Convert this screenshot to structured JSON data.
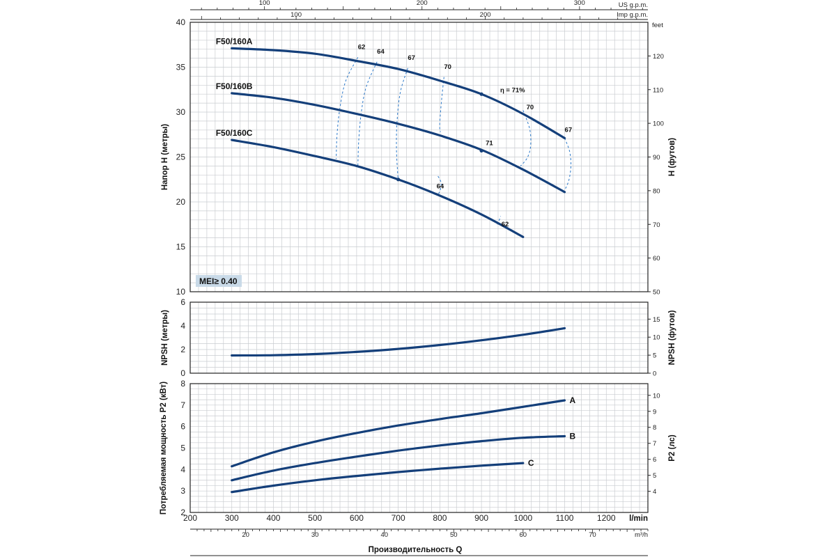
{
  "chart_data": [
    {
      "panel": "head",
      "type": "line",
      "ylabel": "Напор H (метры)",
      "ylabel_right": "H (футов)",
      "ylim": [
        10,
        40
      ],
      "yticks": [
        10,
        15,
        20,
        25,
        30,
        35,
        40
      ],
      "right_unit": "feet",
      "right_ylim": [
        50,
        130
      ],
      "right_ticks": [
        50,
        60,
        70,
        80,
        90,
        100,
        110,
        120
      ],
      "xlim": [
        200,
        1300
      ],
      "top_axis_us": {
        "label": "US g.p.m.",
        "ticks": [
          100,
          200,
          300
        ]
      },
      "top_axis_imp": {
        "label": "Imp g.p.m.",
        "ticks": [
          100,
          200
        ]
      },
      "badge": "MEI≥ 0.40",
      "series": [
        {
          "name": "F50/160A",
          "x": [
            300,
            400,
            500,
            600,
            700,
            800,
            900,
            1000,
            1100
          ],
          "y": [
            37.1,
            36.9,
            36.5,
            35.7,
            34.8,
            33.5,
            32.0,
            29.8,
            27.1
          ]
        },
        {
          "name": "F50/160B",
          "x": [
            300,
            400,
            500,
            600,
            700,
            800,
            900,
            1000,
            1100
          ],
          "y": [
            32.1,
            31.6,
            30.8,
            29.8,
            28.7,
            27.4,
            25.8,
            23.6,
            21.1
          ]
        },
        {
          "name": "F50/160C",
          "x": [
            300,
            400,
            500,
            600,
            700,
            800,
            900,
            1000
          ],
          "y": [
            26.9,
            26.1,
            25.1,
            24.0,
            22.5,
            20.7,
            18.6,
            16.1
          ]
        }
      ],
      "efficiency_labels": [
        {
          "text": "62",
          "x": 603,
          "y": 37.0
        },
        {
          "text": "64",
          "x": 649,
          "y": 36.5
        },
        {
          "text": "67",
          "x": 723,
          "y": 35.8
        },
        {
          "text": "70",
          "x": 810,
          "y": 34.8
        },
        {
          "text": "η = 71%",
          "x": 945,
          "y": 32.2
        },
        {
          "text": "70",
          "x": 1008,
          "y": 30.3
        },
        {
          "text": "67",
          "x": 1100,
          "y": 27.8
        },
        {
          "text": "71",
          "x": 910,
          "y": 26.3
        },
        {
          "text": "64",
          "x": 792,
          "y": 21.5
        },
        {
          "text": "62",
          "x": 948,
          "y": 17.3
        }
      ],
      "efficiency_loops": [
        {
          "x": [
            603,
            574,
            560,
            553,
            551
          ],
          "y": [
            36.1,
            33.5,
            30.5,
            27.5,
            24.8
          ]
        },
        {
          "x": [
            649,
            623,
            611,
            605,
            603
          ],
          "y": [
            35.6,
            32.8,
            29.9,
            26.8,
            24.0
          ]
        },
        {
          "x": [
            723,
            705,
            697,
            696,
            700
          ],
          "y": [
            34.9,
            32.2,
            28.8,
            25.5,
            22.4
          ]
        },
        {
          "x": [
            810,
            804,
            800,
            800,
            802
          ],
          "y": [
            33.9,
            31.3,
            29.0,
            28.0,
            27.8
          ]
        },
        {
          "x": [
            1000,
            1016,
            1018,
            1010,
            994
          ],
          "y": [
            30.2,
            28.1,
            26.2,
            24.9,
            24.0
          ]
        },
        {
          "x": [
            1100,
            1112,
            1115,
            1110,
            1100
          ],
          "y": [
            27.1,
            25.6,
            24.0,
            22.4,
            21.3
          ]
        },
        {
          "x": [
            797,
            802,
            803,
            800,
            795
          ],
          "y": [
            20.9,
            21.5,
            22.1,
            22.5,
            22.9
          ]
        },
        {
          "x": [
            938,
            942,
            946
          ],
          "y": [
            17.5,
            17.9,
            18.4
          ]
        }
      ],
      "efficiency_markers": [
        {
          "x": 900,
          "y": 32.0
        },
        {
          "x": 900,
          "y": 25.7
        },
        {
          "x": 700,
          "y": 22.5
        }
      ]
    },
    {
      "panel": "npsh",
      "type": "line",
      "ylabel": "NPSH (метры)",
      "ylabel_right": "NPSH (футов)",
      "ylim": [
        0,
        6
      ],
      "yticks": [
        0,
        2,
        4,
        6
      ],
      "right_ylim": [
        0,
        19.7
      ],
      "right_ticks": [
        0,
        5,
        10,
        15
      ],
      "xlim": [
        200,
        1300
      ],
      "series": [
        {
          "name": "",
          "x": [
            300,
            400,
            500,
            600,
            700,
            800,
            900,
            1000,
            1100
          ],
          "y": [
            1.5,
            1.52,
            1.62,
            1.8,
            2.05,
            2.38,
            2.78,
            3.25,
            3.8
          ]
        }
      ]
    },
    {
      "panel": "power",
      "type": "line",
      "ylabel": "Потребляемая мощность P2 (кВт)",
      "ylabel_right": "P2 (лс)",
      "ylim": [
        2,
        8
      ],
      "yticks": [
        2,
        3,
        4,
        5,
        6,
        7,
        8
      ],
      "right_ylim": [
        2.68,
        10.73
      ],
      "right_ticks": [
        4,
        5,
        6,
        7,
        8,
        9,
        10
      ],
      "xlim": [
        200,
        1300
      ],
      "series": [
        {
          "name": "A",
          "x": [
            300,
            400,
            500,
            600,
            700,
            800,
            900,
            1000,
            1100
          ],
          "y": [
            4.15,
            4.8,
            5.3,
            5.7,
            6.05,
            6.35,
            6.62,
            6.92,
            7.22
          ]
        },
        {
          "name": "B",
          "x": [
            300,
            400,
            500,
            600,
            700,
            800,
            900,
            1000,
            1100
          ],
          "y": [
            3.5,
            3.95,
            4.3,
            4.6,
            4.88,
            5.12,
            5.32,
            5.48,
            5.55
          ]
        },
        {
          "name": "C",
          "x": [
            300,
            400,
            500,
            600,
            700,
            800,
            900,
            1000
          ],
          "y": [
            2.95,
            3.25,
            3.5,
            3.7,
            3.88,
            4.04,
            4.18,
            4.3
          ]
        }
      ]
    }
  ],
  "x_axis": {
    "title": "Производительность Q",
    "unit_main": "l/min",
    "ticks_main": [
      200,
      300,
      400,
      500,
      600,
      700,
      800,
      900,
      1000,
      1100,
      1200
    ],
    "unit_secondary": "m³/h",
    "ticks_secondary": [
      20,
      30,
      40,
      50,
      60,
      70
    ]
  },
  "colors": {
    "curve": "#143f7a",
    "efficiency": "#2a78c9",
    "grid": "#c9ccd0",
    "badge_bg": "#c9dae8"
  }
}
